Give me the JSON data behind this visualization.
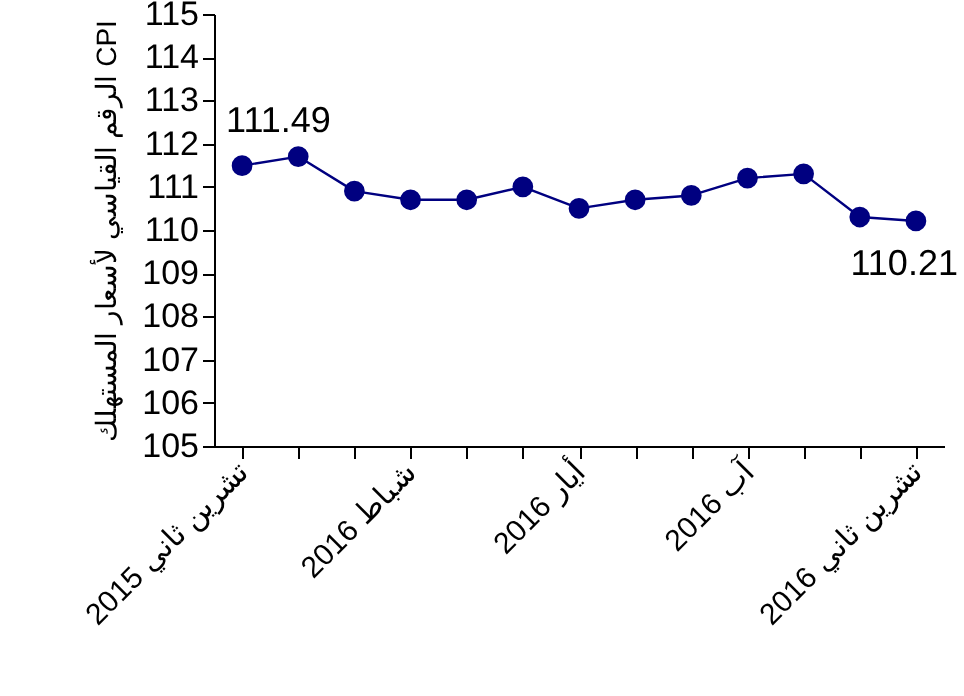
{
  "chart_data": {
    "type": "line",
    "ylabel": "الرقم القياسي لأسعار المستهلك CPI",
    "categories": [
      "تشرين ثاني 2015",
      null,
      null,
      "شباط 2016",
      null,
      null,
      "أيار 2016",
      null,
      null,
      "آب 2016",
      null,
      null,
      "تشرين ثاني 2016"
    ],
    "series": [
      {
        "color": "#000080",
        "values": [
          111.49,
          111.7,
          110.9,
          110.7,
          110.7,
          111.0,
          110.5,
          110.7,
          110.8,
          111.2,
          111.3,
          110.3,
          110.21
        ],
        "value_labels": [
          "111.49",
          null,
          null,
          null,
          null,
          null,
          null,
          null,
          null,
          null,
          null,
          null,
          "110.21"
        ]
      }
    ],
    "ylim": [
      105,
      115
    ],
    "yticks": [
      105,
      106,
      107,
      108,
      109,
      110,
      111,
      112,
      113,
      114,
      115
    ],
    "marker": "circle",
    "line_style": "solid"
  }
}
